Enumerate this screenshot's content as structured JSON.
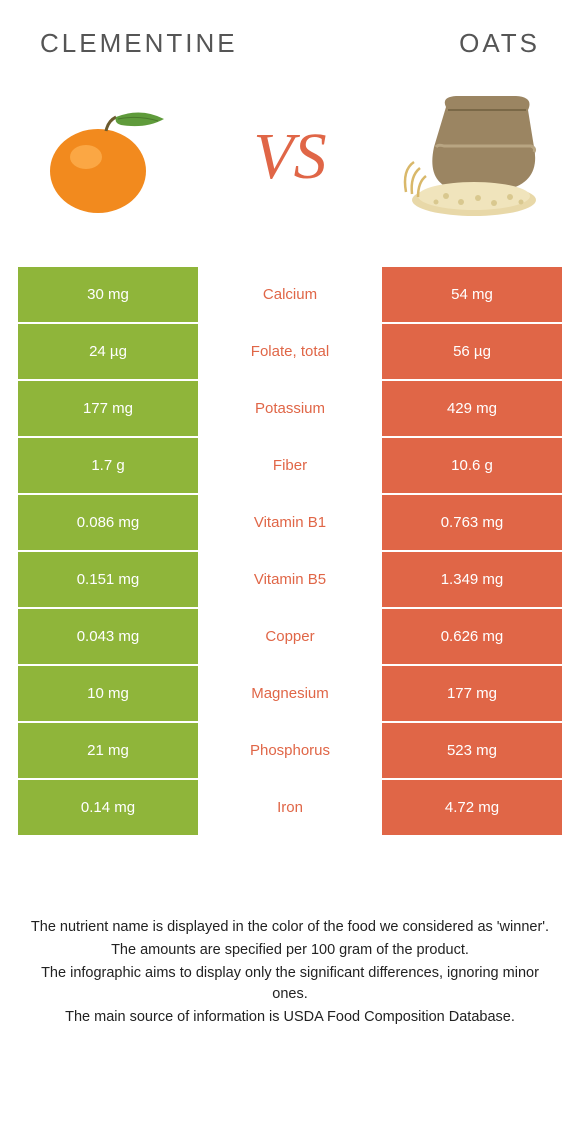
{
  "header": {
    "left_title": "CLEMENTINE",
    "right_title": "OATS",
    "vs_label": "VS"
  },
  "colors": {
    "left_cell": "#8fb53a",
    "right_cell": "#e06647",
    "left_winner_text": "#8fb53a",
    "right_winner_text": "#e06647",
    "header_text": "#555555"
  },
  "rows": [
    {
      "left": "30 mg",
      "label": "Calcium",
      "right": "54 mg",
      "winner": "right"
    },
    {
      "left": "24 µg",
      "label": "Folate, total",
      "right": "56 µg",
      "winner": "right"
    },
    {
      "left": "177 mg",
      "label": "Potassium",
      "right": "429 mg",
      "winner": "right"
    },
    {
      "left": "1.7 g",
      "label": "Fiber",
      "right": "10.6 g",
      "winner": "right"
    },
    {
      "left": "0.086 mg",
      "label": "Vitamin B1",
      "right": "0.763 mg",
      "winner": "right"
    },
    {
      "left": "0.151 mg",
      "label": "Vitamin B5",
      "right": "1.349 mg",
      "winner": "right"
    },
    {
      "left": "0.043 mg",
      "label": "Copper",
      "right": "0.626 mg",
      "winner": "right"
    },
    {
      "left": "10 mg",
      "label": "Magnesium",
      "right": "177 mg",
      "winner": "right"
    },
    {
      "left": "21 mg",
      "label": "Phosphorus",
      "right": "523 mg",
      "winner": "right"
    },
    {
      "left": "0.14 mg",
      "label": "Iron",
      "right": "4.72 mg",
      "winner": "right"
    }
  ],
  "footnotes": [
    "The nutrient name is displayed in the color of the food we considered as 'winner'.",
    "The amounts are specified per 100 gram of the product.",
    "The infographic aims to display only the significant differences, ignoring minor ones.",
    "The main source of information is USDA Food Composition Database."
  ]
}
